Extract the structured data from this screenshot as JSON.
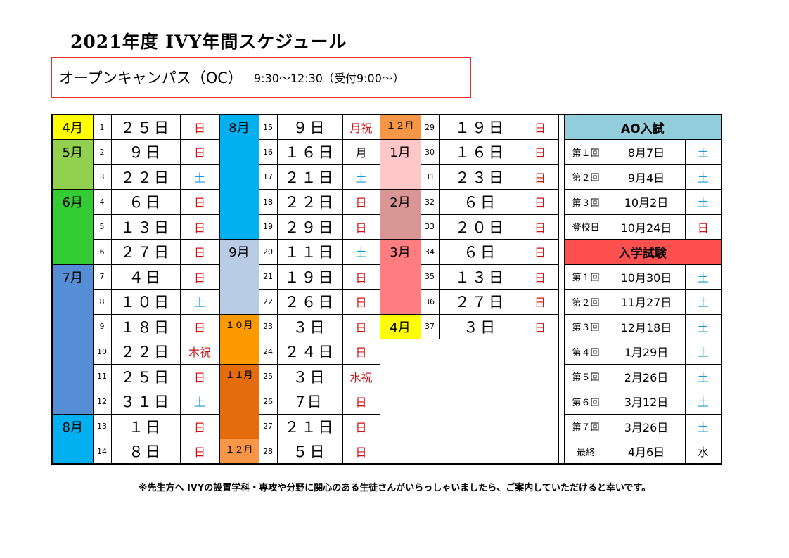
{
  "title": "2021年度  IVY年間スケジュール",
  "oc": {
    "label": "オープンキャンパス（OC）",
    "time": "9:30～12:30（受付9:00～）"
  },
  "colors": {
    "april": "#ffff00",
    "may": "#92d050",
    "june": "#33cc33",
    "july": "#558ed5",
    "august": "#00b0f0",
    "september": "#b8cce4",
    "october": "#ff9900",
    "november": "#e46c0a",
    "december": "#f79646",
    "january": "#ffc7c7",
    "february": "#da9694",
    "march": "#ff7c80",
    "ao_header": "#92cddc",
    "exam_header": "#ff5050",
    "holiday_text": "#d01010",
    "saturday_text": "#1a9ad6"
  },
  "months": {
    "apr": "4月",
    "may": "5月",
    "jun": "6月",
    "jul": "7月",
    "aug": "8月",
    "aug2": "8月",
    "sep": "9月",
    "oct": "１０月",
    "nov": "１１月",
    "dec": "１２月",
    "dec2": "１２月",
    "jan": "1月",
    "feb": "2月",
    "mar": "3月",
    "apr2": "4月"
  },
  "col1": [
    {
      "n": "1",
      "d": "２５日",
      "w": "日"
    },
    {
      "n": "2",
      "d": "９日",
      "w": "日"
    },
    {
      "n": "3",
      "d": "２２日",
      "w": "土"
    },
    {
      "n": "4",
      "d": "６日",
      "w": "日"
    },
    {
      "n": "5",
      "d": "１３日",
      "w": "日"
    },
    {
      "n": "6",
      "d": "２７日",
      "w": "日"
    },
    {
      "n": "7",
      "d": "４日",
      "w": "日"
    },
    {
      "n": "8",
      "d": "１０日",
      "w": "土"
    },
    {
      "n": "9",
      "d": "１８日",
      "w": "日"
    },
    {
      "n": "10",
      "d": "２２日",
      "w": "木祝"
    },
    {
      "n": "11",
      "d": "２５日",
      "w": "日"
    },
    {
      "n": "12",
      "d": "３１日",
      "w": "土"
    },
    {
      "n": "13",
      "d": "１日",
      "w": "日"
    },
    {
      "n": "14",
      "d": "８日",
      "w": "日"
    }
  ],
  "col2": [
    {
      "n": "15",
      "d": "９日",
      "w": "月祝"
    },
    {
      "n": "16",
      "d": "１６日",
      "w": "月"
    },
    {
      "n": "17",
      "d": "２１日",
      "w": "土"
    },
    {
      "n": "18",
      "d": "２２日",
      "w": "日"
    },
    {
      "n": "19",
      "d": "２９日",
      "w": "日"
    },
    {
      "n": "20",
      "d": "１１日",
      "w": "土"
    },
    {
      "n": "21",
      "d": "１９日",
      "w": "日"
    },
    {
      "n": "22",
      "d": "２６日",
      "w": "日"
    },
    {
      "n": "23",
      "d": "３日",
      "w": "日"
    },
    {
      "n": "24",
      "d": "２４日",
      "w": "日"
    },
    {
      "n": "25",
      "d": "３日",
      "w": "水祝"
    },
    {
      "n": "26",
      "d": "7日",
      "w": "日"
    },
    {
      "n": "27",
      "d": "２１日",
      "w": "日"
    },
    {
      "n": "28",
      "d": "５日",
      "w": "日"
    }
  ],
  "col3": [
    {
      "n": "29",
      "d": "１９日",
      "w": "日"
    },
    {
      "n": "30",
      "d": "１６日",
      "w": "日"
    },
    {
      "n": "31",
      "d": "２３日",
      "w": "日"
    },
    {
      "n": "32",
      "d": "６日",
      "w": "日"
    },
    {
      "n": "33",
      "d": "２０日",
      "w": "日"
    },
    {
      "n": "34",
      "d": "６日",
      "w": "日"
    },
    {
      "n": "35",
      "d": "１３日",
      "w": "日"
    },
    {
      "n": "36",
      "d": "２７日",
      "w": "日"
    },
    {
      "n": "37",
      "d": "３日",
      "w": "日"
    }
  ],
  "ao": {
    "title": "AO入試",
    "rows": [
      {
        "n": "第１回",
        "d": "8月7日",
        "w": "土"
      },
      {
        "n": "第２回",
        "d": "9月4日",
        "w": "土"
      },
      {
        "n": "第３回",
        "d": "10月2日",
        "w": "土"
      },
      {
        "n": "登校日",
        "d": "10月24日",
        "w": "日"
      }
    ]
  },
  "exam": {
    "title": "入学試験",
    "rows": [
      {
        "n": "第１回",
        "d": "10月30日",
        "w": "土"
      },
      {
        "n": "第２回",
        "d": "11月27日",
        "w": "土"
      },
      {
        "n": "第３回",
        "d": "12月18日",
        "w": "土"
      },
      {
        "n": "第４回",
        "d": "1月29日",
        "w": "土"
      },
      {
        "n": "第５回",
        "d": "2月26日",
        "w": "土"
      },
      {
        "n": "第６回",
        "d": "3月12日",
        "w": "土"
      },
      {
        "n": "第７回",
        "d": "3月26日",
        "w": "土"
      },
      {
        "n": "最終",
        "d": "4月6日",
        "w": "水"
      }
    ]
  },
  "note": "※先生方へ  IVYの設置学科・専攻や分野に関心のある生徒さんがいらっしゃいましたら、ご案内していただけると幸いです。"
}
